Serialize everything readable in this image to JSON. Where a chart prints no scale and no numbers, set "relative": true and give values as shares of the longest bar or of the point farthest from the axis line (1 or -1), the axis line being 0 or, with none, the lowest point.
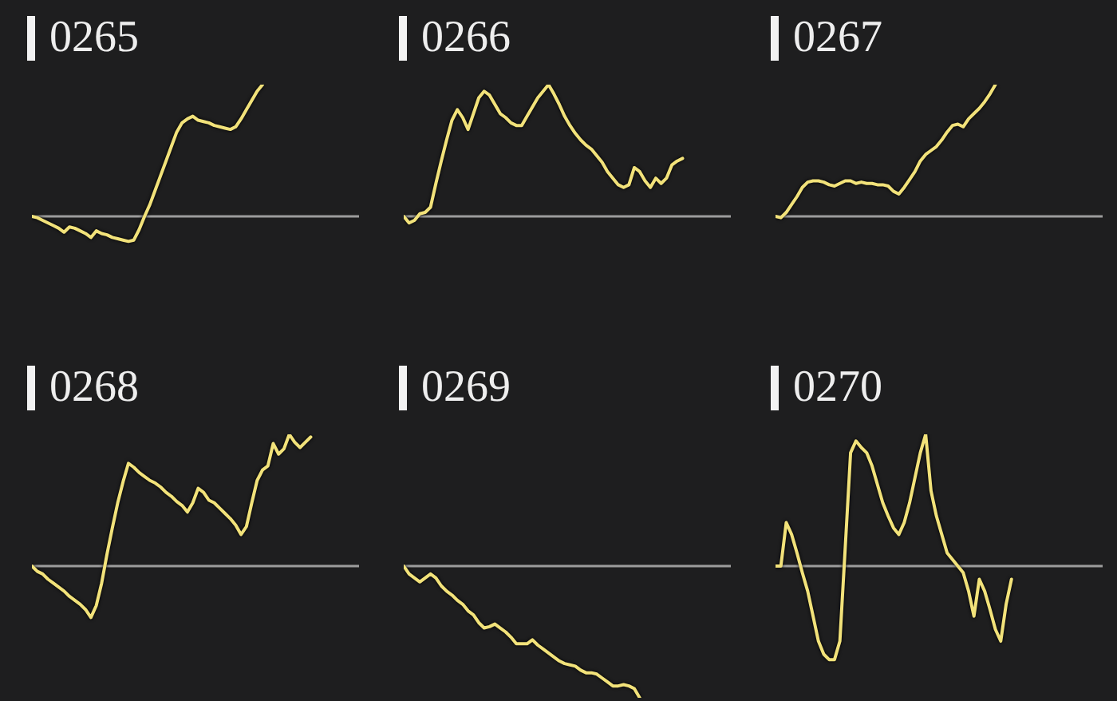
{
  "chart_data": [
    {
      "type": "line",
      "title": "0265",
      "relative": true,
      "color": "#f2e27a",
      "categories": [
        null,
        null,
        null,
        null,
        null,
        null,
        null,
        null,
        null,
        null,
        null,
        null,
        null,
        null,
        null,
        null,
        null,
        null,
        null,
        null,
        null,
        null,
        null,
        null,
        null,
        null,
        null,
        null,
        null,
        null,
        null,
        null,
        null,
        null,
        null,
        null,
        null,
        null,
        null,
        null,
        null,
        null,
        null,
        null,
        null,
        null,
        null,
        null,
        null,
        null,
        null,
        null,
        null,
        null,
        null,
        null,
        null,
        null,
        null,
        null,
        null,
        null
      ],
      "values": [
        0,
        -0.01,
        -0.03,
        -0.05,
        -0.07,
        -0.09,
        -0.12,
        -0.08,
        -0.09,
        -0.11,
        -0.13,
        -0.16,
        -0.11,
        -0.13,
        -0.14,
        -0.16,
        -0.17,
        -0.18,
        -0.19,
        -0.18,
        -0.1,
        0,
        0.09,
        0.2,
        0.31,
        0.42,
        0.53,
        0.64,
        0.71,
        0.74,
        0.76,
        0.73,
        0.72,
        0.71,
        0.69,
        0.68,
        0.67,
        0.66,
        0.68,
        0.74,
        0.81,
        0.88,
        0.95,
        1,
        null,
        null,
        null,
        null,
        null,
        null,
        null,
        null,
        null,
        null,
        null,
        null,
        null,
        null,
        null,
        null,
        null,
        null
      ]
    },
    {
      "type": "line",
      "title": "0266",
      "relative": true,
      "color": "#f2e27a",
      "categories": [
        null,
        null,
        null,
        null,
        null,
        null,
        null,
        null,
        null,
        null,
        null,
        null,
        null,
        null,
        null,
        null,
        null,
        null,
        null,
        null,
        null,
        null,
        null,
        null,
        null,
        null,
        null,
        null,
        null,
        null,
        null,
        null,
        null,
        null,
        null,
        null,
        null,
        null,
        null,
        null,
        null,
        null,
        null,
        null,
        null,
        null,
        null,
        null,
        null,
        null,
        null,
        null,
        null,
        null,
        null,
        null,
        null,
        null,
        null,
        null,
        null,
        null
      ],
      "values": [
        0,
        -0.05,
        -0.03,
        0.02,
        0.03,
        0.07,
        0.25,
        0.42,
        0.58,
        0.73,
        0.81,
        0.75,
        0.66,
        0.78,
        0.9,
        0.95,
        0.92,
        0.85,
        0.78,
        0.75,
        0.71,
        0.69,
        0.69,
        0.76,
        0.83,
        0.9,
        0.95,
        1,
        0.93,
        0.85,
        0.76,
        0.69,
        0.63,
        0.58,
        0.54,
        0.51,
        0.46,
        0.41,
        0.34,
        0.29,
        0.24,
        0.22,
        0.24,
        0.37,
        0.34,
        0.27,
        0.22,
        0.29,
        0.25,
        0.29,
        0.39,
        0.42,
        0.44,
        null,
        null,
        null,
        null,
        null,
        null,
        null,
        null,
        null
      ]
    },
    {
      "type": "line",
      "title": "0267",
      "relative": true,
      "color": "#f2e27a",
      "categories": [
        null,
        null,
        null,
        null,
        null,
        null,
        null,
        null,
        null,
        null,
        null,
        null,
        null,
        null,
        null,
        null,
        null,
        null,
        null,
        null,
        null,
        null,
        null,
        null,
        null,
        null,
        null,
        null,
        null,
        null,
        null,
        null,
        null,
        null,
        null,
        null,
        null,
        null,
        null,
        null,
        null,
        null,
        null,
        null,
        null,
        null,
        null,
        null,
        null,
        null,
        null,
        null,
        null,
        null,
        null,
        null,
        null,
        null,
        null,
        null,
        null,
        null
      ],
      "values": [
        0,
        -0.01,
        0.03,
        0.09,
        0.15,
        0.22,
        0.26,
        0.27,
        0.27,
        0.26,
        0.24,
        0.23,
        0.25,
        0.27,
        0.27,
        0.25,
        0.26,
        0.25,
        0.25,
        0.24,
        0.24,
        0.23,
        0.19,
        0.17,
        0.22,
        0.28,
        0.34,
        0.42,
        0.47,
        0.5,
        0.53,
        0.58,
        0.64,
        0.69,
        0.7,
        0.68,
        0.74,
        0.78,
        0.82,
        0.87,
        0.93,
        1,
        null,
        null,
        null,
        null,
        null,
        null,
        null,
        null,
        null,
        null,
        null,
        null,
        null,
        null,
        null,
        null,
        null,
        null,
        null,
        null
      ]
    },
    {
      "type": "line",
      "title": "0268",
      "relative": true,
      "color": "#f2e27a",
      "categories": [
        null,
        null,
        null,
        null,
        null,
        null,
        null,
        null,
        null,
        null,
        null,
        null,
        null,
        null,
        null,
        null,
        null,
        null,
        null,
        null,
        null,
        null,
        null,
        null,
        null,
        null,
        null,
        null,
        null,
        null,
        null,
        null,
        null,
        null,
        null,
        null,
        null,
        null,
        null,
        null,
        null,
        null,
        null,
        null,
        null,
        null,
        null,
        null,
        null,
        null,
        null,
        null,
        null,
        null,
        null,
        null,
        null,
        null,
        null,
        null,
        null,
        null
      ],
      "values": [
        0,
        -0.04,
        -0.06,
        -0.1,
        -0.13,
        -0.16,
        -0.19,
        -0.23,
        -0.26,
        -0.29,
        -0.33,
        -0.39,
        -0.3,
        -0.13,
        0.09,
        0.29,
        0.48,
        0.64,
        0.78,
        0.75,
        0.71,
        0.68,
        0.65,
        0.63,
        0.6,
        0.56,
        0.53,
        0.49,
        0.46,
        0.41,
        0.48,
        0.59,
        0.56,
        0.5,
        0.48,
        0.44,
        0.4,
        0.36,
        0.31,
        0.24,
        0.3,
        0.48,
        0.65,
        0.73,
        0.76,
        0.93,
        0.85,
        0.89,
        1,
        0.94,
        0.9,
        0.94,
        0.98,
        null,
        null,
        null,
        null,
        null,
        null,
        null,
        null,
        null
      ]
    },
    {
      "type": "line",
      "title": "0269",
      "relative": true,
      "color": "#f2e27a",
      "categories": [
        null,
        null,
        null,
        null,
        null,
        null,
        null,
        null,
        null,
        null,
        null,
        null,
        null,
        null,
        null,
        null,
        null,
        null,
        null,
        null,
        null,
        null,
        null,
        null,
        null,
        null,
        null,
        null,
        null,
        null,
        null,
        null,
        null,
        null,
        null,
        null,
        null,
        null,
        null,
        null,
        null,
        null,
        null,
        null,
        null,
        null,
        null,
        null,
        null,
        null,
        null,
        null,
        null,
        null,
        null,
        null,
        null,
        null,
        null,
        null,
        null,
        null
      ],
      "values": [
        0,
        -0.06,
        -0.09,
        -0.12,
        -0.09,
        -0.06,
        -0.09,
        -0.15,
        -0.19,
        -0.22,
        -0.26,
        -0.29,
        -0.34,
        -0.37,
        -0.43,
        -0.47,
        -0.46,
        -0.44,
        -0.47,
        -0.5,
        -0.54,
        -0.59,
        -0.59,
        -0.59,
        -0.56,
        -0.6,
        -0.63,
        -0.66,
        -0.69,
        -0.72,
        -0.74,
        -0.75,
        -0.76,
        -0.79,
        -0.81,
        -0.81,
        -0.82,
        -0.85,
        -0.88,
        -0.91,
        -0.91,
        -0.9,
        -0.91,
        -0.93,
        -1,
        null,
        null,
        null,
        null,
        null,
        null,
        null,
        null,
        null,
        null,
        null,
        null,
        null,
        null,
        null,
        null,
        null
      ]
    },
    {
      "type": "line",
      "title": "0270",
      "relative": true,
      "color": "#f2e27a",
      "categories": [
        null,
        null,
        null,
        null,
        null,
        null,
        null,
        null,
        null,
        null,
        null,
        null,
        null,
        null,
        null,
        null,
        null,
        null,
        null,
        null,
        null,
        null,
        null,
        null,
        null,
        null,
        null,
        null,
        null,
        null,
        null,
        null,
        null,
        null,
        null,
        null,
        null,
        null,
        null,
        null,
        null,
        null,
        null,
        null,
        null,
        null,
        null,
        null,
        null,
        null,
        null,
        null,
        null,
        null,
        null,
        null,
        null,
        null,
        null,
        null,
        null,
        null
      ],
      "values": [
        0,
        0,
        0.33,
        0.24,
        0.1,
        -0.05,
        -0.19,
        -0.38,
        -0.57,
        -0.67,
        -0.71,
        -0.71,
        -0.57,
        0.14,
        0.86,
        0.95,
        0.9,
        0.86,
        0.76,
        0.62,
        0.48,
        0.38,
        0.29,
        0.24,
        0.33,
        0.48,
        0.67,
        0.86,
        1,
        0.57,
        0.38,
        0.24,
        0.1,
        0.05,
        0,
        -0.05,
        -0.19,
        -0.38,
        -0.1,
        -0.19,
        -0.33,
        -0.48,
        -0.57,
        -0.29,
        -0.1,
        null,
        null,
        null,
        null,
        null,
        null,
        null,
        null,
        null,
        null,
        null,
        null,
        null,
        null,
        null,
        null,
        null
      ]
    }
  ]
}
